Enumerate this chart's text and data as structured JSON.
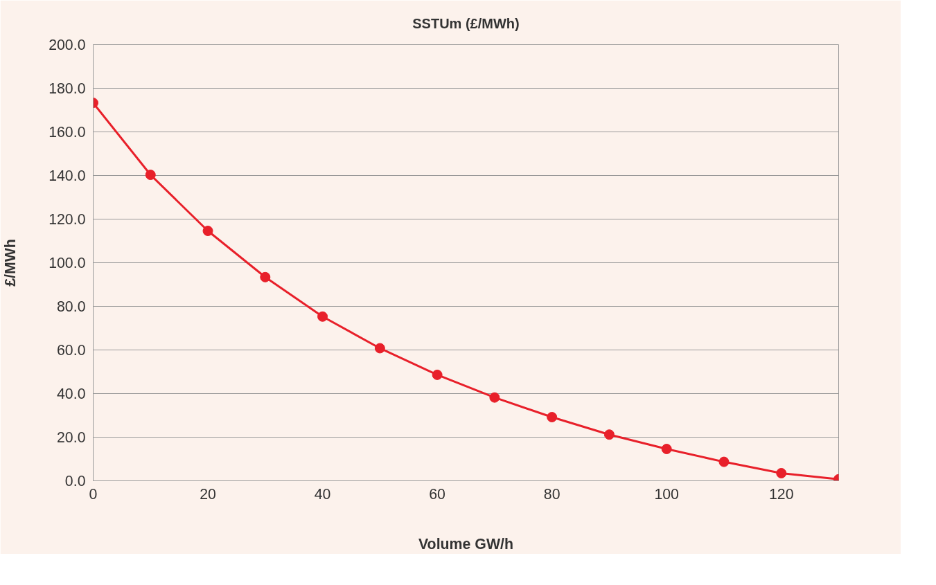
{
  "chart_data": {
    "type": "line",
    "title": "SSTUm (£/MWh)",
    "xlabel": "Volume GW/h",
    "ylabel": "£/MWh",
    "x": [
      0,
      10,
      20,
      30,
      40,
      50,
      60,
      70,
      80,
      90,
      100,
      110,
      120,
      130
    ],
    "series": [
      {
        "color": "#e8202a",
        "values": [
          173.3,
          140.3,
          114.6,
          93.4,
          75.3,
          60.8,
          48.6,
          38.2,
          29.2,
          21.2,
          14.6,
          8.7,
          3.5,
          0.7
        ]
      }
    ],
    "xlim": [
      0,
      130
    ],
    "xticks": [
      0,
      20,
      40,
      60,
      80,
      100,
      120
    ],
    "ylim": [
      0,
      200
    ],
    "yticks": [
      {
        "value": 0,
        "label": "0.0"
      },
      {
        "value": 20,
        "label": "20.0"
      },
      {
        "value": 40,
        "label": "40.0"
      },
      {
        "value": 60,
        "label": "60.0"
      },
      {
        "value": 80,
        "label": "80.0"
      },
      {
        "value": 100,
        "label": "100.0"
      },
      {
        "value": 120,
        "label": "120.0"
      },
      {
        "value": 140,
        "label": "140.0"
      },
      {
        "value": 160,
        "label": "160.0"
      },
      {
        "value": 180,
        "label": "180.0"
      },
      {
        "value": 200,
        "label": "200.0"
      }
    ],
    "grid": "y",
    "marker": "circle",
    "line_style": "solid"
  }
}
